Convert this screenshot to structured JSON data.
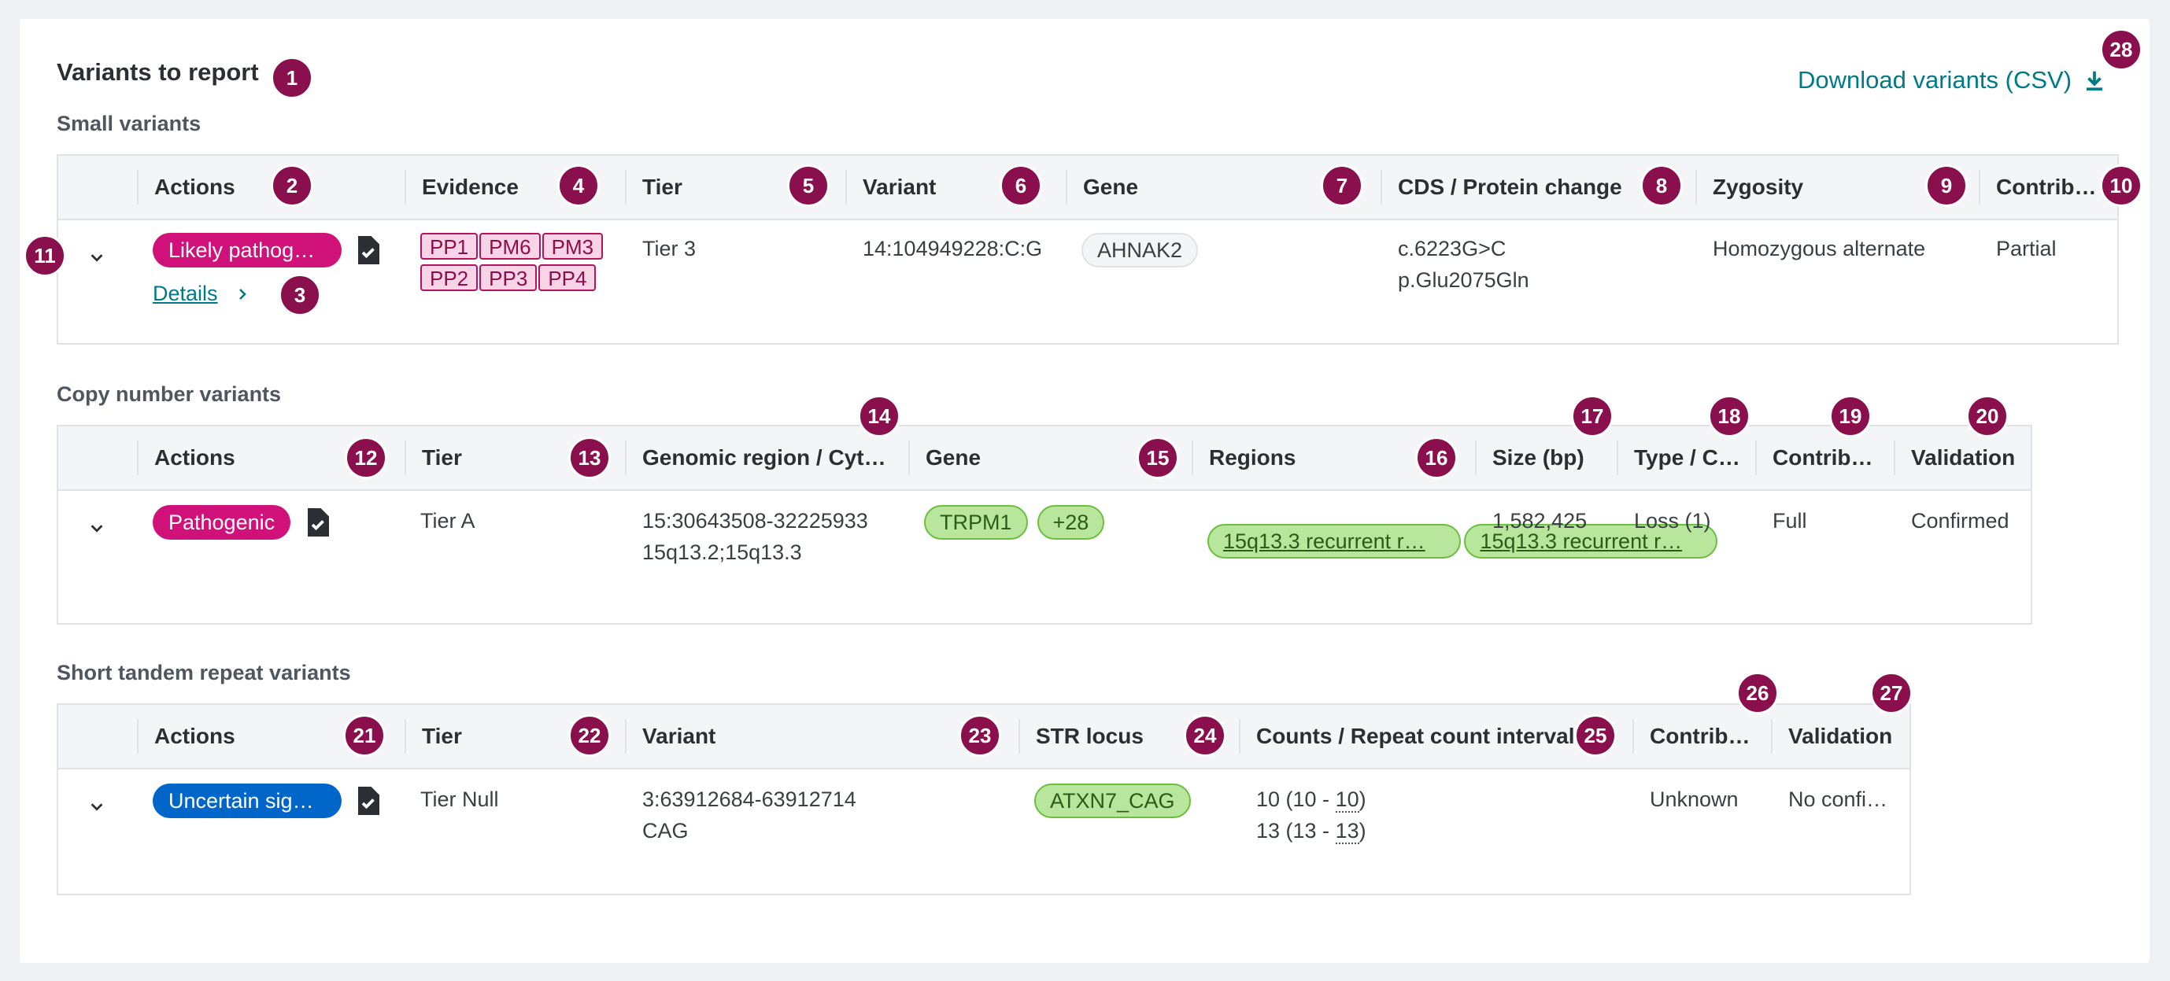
{
  "page": {
    "title": "Variants to report",
    "download_label": "Download variants (CSV)"
  },
  "small_variants": {
    "title": "Small variants",
    "headers": [
      "Actions",
      "Evidence",
      "Tier",
      "Variant",
      "Gene",
      "CDS / Protein change",
      "Zygosity",
      "Contrib…"
    ],
    "row": {
      "classification": "Likely pathog…",
      "details_label": "Details",
      "evidence": [
        "PP1",
        "PM6",
        "PM3",
        "PP2",
        "PP3",
        "PP4"
      ],
      "tier": "Tier 3",
      "variant": "14:104949228:C:G",
      "gene": "AHNAK2",
      "cds": "c.6223G>C",
      "protein": "p.Glu2075Gln",
      "zygosity": "Homozygous alternate",
      "contribution": "Partial"
    }
  },
  "cnv": {
    "title": "Copy number variants",
    "headers": [
      "Actions",
      "Tier",
      "Genomic region / Cyt…",
      "Gene",
      "Regions",
      "Size (bp)",
      "Type / C…",
      "Contrib…",
      "Validation"
    ],
    "row": {
      "classification": "Pathogenic",
      "tier": "Tier A",
      "region": "15:30643508-32225933",
      "cytoband": "15q13.2;15q13.3",
      "gene": "TRPM1",
      "gene_more": "+28",
      "regions": [
        "15q13.3 recurrent r…",
        "15q13.3 recurrent r…"
      ],
      "size": "1,582,425",
      "type": "Loss (1)",
      "contribution": "Full",
      "validation": "Confirmed"
    }
  },
  "str": {
    "title": "Short tandem repeat variants",
    "headers": [
      "Actions",
      "Tier",
      "Variant",
      "STR locus",
      "Counts / Repeat count interval",
      "Contrib…",
      "Validation"
    ],
    "row": {
      "classification": "Uncertain sig…",
      "tier": "Tier Null",
      "variant": "3:63912684-63912714",
      "motif": "CAG",
      "locus": "ATXN7_CAG",
      "count1_pre": "10 (10 - ",
      "count1_num": "10",
      "count1_post": ")",
      "count2_pre": "13 (13 - ",
      "count2_num": "13",
      "count2_post": ")",
      "contribution": "Unknown",
      "validation": "No confi…"
    }
  },
  "badges": [
    "1",
    "2",
    "3",
    "4",
    "5",
    "6",
    "7",
    "8",
    "9",
    "10",
    "11",
    "12",
    "13",
    "14",
    "15",
    "16",
    "17",
    "18",
    "19",
    "20",
    "21",
    "22",
    "23",
    "24",
    "25",
    "26",
    "27",
    "28"
  ],
  "colors": {
    "accent_link": "#007a87",
    "pink_pill": "#d1117a",
    "blue_pill": "#0066c9",
    "badge": "#8a0f4d",
    "green_chip": "#b7e69c"
  }
}
